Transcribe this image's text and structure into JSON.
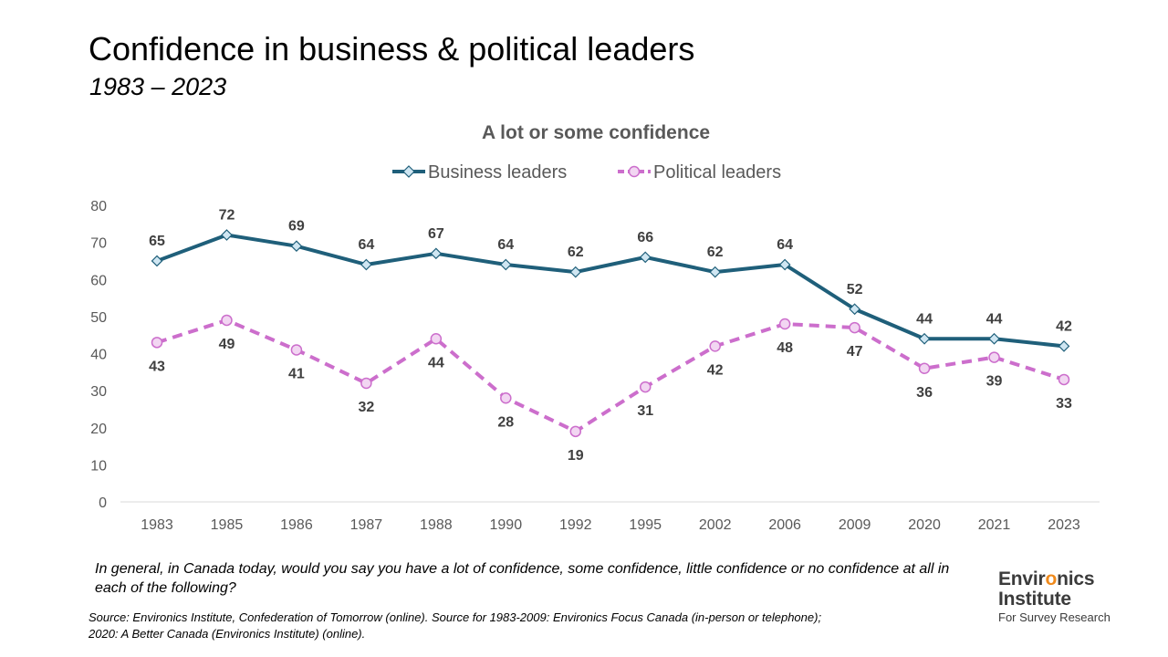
{
  "header": {
    "title": "Confidence in business & political leaders",
    "subtitle": "1983 – 2023"
  },
  "footer": {
    "question": "In general, in Canada today, would you say you have a lot of confidence, some confidence, little confidence or no confidence at all in each of the following?",
    "source_line1": "Source: Environics Institute, Confederation of Tomorrow (online). Source for 1983-2009: Environics Focus Canada (in-person or telephone);",
    "source_line2": "2020: A Better Canada (Environics Institute) (online)."
  },
  "logo": {
    "line1_pre": "Envir",
    "line1_accent": "o",
    "line1_post": "nics",
    "line2": "Institute",
    "line3": "For Survey Research"
  },
  "colors": {
    "business": "#1f5f7a",
    "business_marker_fill": "#cfe6f2",
    "political": "#cc6ecc",
    "political_marker_fill": "#f2d6f2",
    "axis_text": "#595959",
    "label_text": "#404040",
    "logo_accent": "#f08a1c"
  },
  "chart_data": {
    "type": "line",
    "title": "A lot or some confidence",
    "categories": [
      "1983",
      "1985",
      "1986",
      "1987",
      "1988",
      "1990",
      "1992",
      "1995",
      "2002",
      "2006",
      "2009",
      "2020",
      "2021",
      "2023"
    ],
    "series": [
      {
        "name": "Business leaders",
        "values": [
          65,
          72,
          69,
          64,
          67,
          64,
          62,
          66,
          62,
          64,
          52,
          44,
          44,
          42
        ],
        "line_style": "solid",
        "marker": "diamond",
        "label_position": "above"
      },
      {
        "name": "Political leaders",
        "values": [
          43,
          49,
          41,
          32,
          44,
          28,
          19,
          31,
          42,
          48,
          47,
          36,
          39,
          33
        ],
        "line_style": "dashed",
        "marker": "circle",
        "label_position": "below"
      }
    ],
    "ylim": [
      0,
      80
    ],
    "yticks": [
      0,
      10,
      20,
      30,
      40,
      50,
      60,
      70,
      80
    ],
    "grid": false,
    "legend": "top-center",
    "xlabel": "",
    "ylabel": ""
  }
}
